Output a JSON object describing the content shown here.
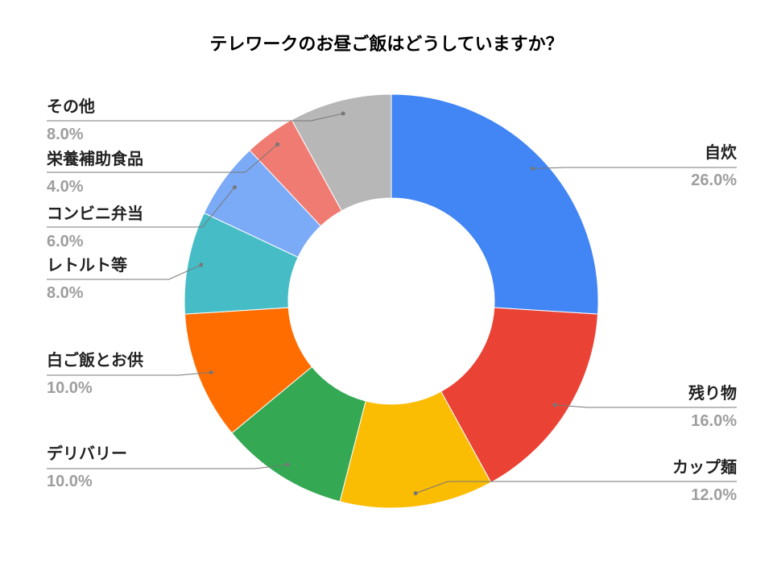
{
  "chart_data": {
    "type": "pie",
    "donut": true,
    "title": "テレワークのお昼ご飯はどうしていますか？",
    "slices": [
      {
        "label": "自炊",
        "value": 26.0,
        "display": "26.0%",
        "color": "#4285f4"
      },
      {
        "label": "残り物",
        "value": 16.0,
        "display": "16.0%",
        "color": "#ea4335"
      },
      {
        "label": "カップ麺",
        "value": 12.0,
        "display": "12.0%",
        "color": "#fbbc04"
      },
      {
        "label": "デリバリー",
        "value": 10.0,
        "display": "10.0%",
        "color": "#34a853"
      },
      {
        "label": "白ご飯とお供",
        "value": 10.0,
        "display": "10.0%",
        "color": "#ff6d01"
      },
      {
        "label": "レトルト等",
        "value": 8.0,
        "display": "8.0%",
        "color": "#46bdc6"
      },
      {
        "label": "コンビニ弁当",
        "value": 6.0,
        "display": "6.0%",
        "color": "#7baaf7"
      },
      {
        "label": "栄養補助食品",
        "value": 4.0,
        "display": "4.0%",
        "color": "#f07b72"
      },
      {
        "label": "その他",
        "value": 8.0,
        "display": "8.0%",
        "color": "#b7b7b7"
      }
    ],
    "legend": "none"
  }
}
